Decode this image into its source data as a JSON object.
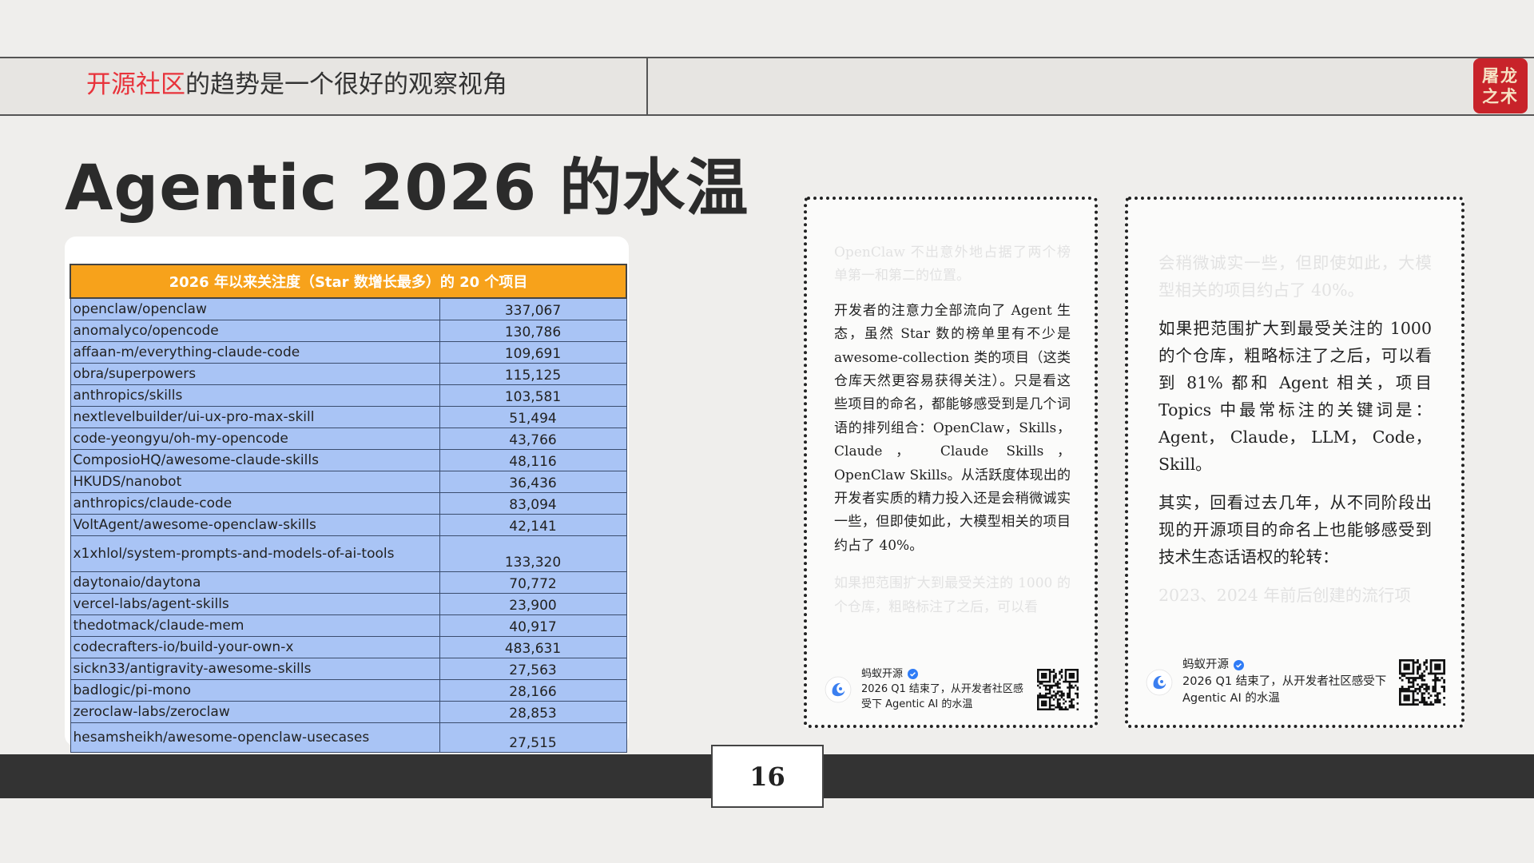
{
  "header": {
    "highlight": "开源社区",
    "text": "的趋势是一个很好的观察视角",
    "logo": "屠龙之术"
  },
  "title": "Agentic 2026 的水温",
  "table": {
    "title": "2026 年以来关注度（Star 数增长最多）的 20 个项目",
    "rows": [
      [
        "openclaw/openclaw",
        "337,067"
      ],
      [
        "anomalyco/opencode",
        "130,786"
      ],
      [
        "affaan-m/everything-claude-code",
        "109,691"
      ],
      [
        "obra/superpowers",
        "115,125"
      ],
      [
        "anthropics/skills",
        "103,581"
      ],
      [
        "nextlevelbuilder/ui-ux-pro-max-skill",
        "51,494"
      ],
      [
        "code-yeongyu/oh-my-opencode",
        "43,766"
      ],
      [
        "ComposioHQ/awesome-claude-skills",
        "48,116"
      ],
      [
        "HKUDS/nanobot",
        "36,436"
      ],
      [
        "anthropics/claude-code",
        "83,094"
      ],
      [
        "VoltAgent/awesome-openclaw-skills",
        "42,141"
      ],
      [
        "x1xhlol/system-prompts-and-models-of-ai-tools",
        "133,320"
      ],
      [
        "daytonaio/daytona",
        "70,772"
      ],
      [
        "vercel-labs/agent-skills",
        "23,900"
      ],
      [
        "thedotmack/claude-mem",
        "40,917"
      ],
      [
        "codecrafters-io/build-your-own-x",
        "483,631"
      ],
      [
        "sickn33/antigravity-awesome-skills",
        "27,563"
      ],
      [
        "badlogic/pi-mono",
        "28,166"
      ],
      [
        "zeroclaw-labs/zeroclaw",
        "28,853"
      ],
      [
        "hesamsheikh/awesome-openclaw-usecases",
        "27,515"
      ]
    ]
  },
  "cards": [
    {
      "faded_top": "OpenClaw 不出意外地占据了两个榜单第一和第二的位置。",
      "paragraphs": [
        "开发者的注意力全部流向了 Agent 生态，虽然 Star 数的榜单里有不少是 awesome-collection 类的项目（这类仓库天然更容易获得关注）。只是看这些项目的命名，都能够感受到是几个词语的排列组合：OpenClaw，Skills， Claude， Claude Skills， OpenClaw Skills。从活跃度体现出的开发者实质的精力投入还是会稍微诚实一些，但即使如此，大模型相关的项目约占了 40%。"
      ],
      "faded_bottom": "如果把范围扩大到最受关注的 1000 的个仓库，粗略标注了之后，可以看",
      "footer": {
        "author": "蚂蚁开源",
        "text": "2026 Q1 结束了，从开发者社区感受下 Agentic AI 的水温"
      }
    },
    {
      "faded_top": "会稍微诚实一些，但即使如此，大模型相关的项目约占了 40%。",
      "paragraphs": [
        "如果把范围扩大到最受关注的 1000 的个仓库，粗略标注了之后，可以看到 81% 都和 Agent 相关，项目 Topics 中最常标注的关键词是：Agent， Claude， LLM， Code， Skill。",
        "其实，回看过去几年，从不同阶段出现的开源项目的命名上也能够感受到技术生态话语权的轮转："
      ],
      "faded_bottom": "2023、2024 年前后创建的流行项",
      "footer": {
        "author": "蚂蚁开源",
        "text": "2026 Q1 结束了，从开发者社区感受下 Agentic AI 的水温"
      }
    }
  ],
  "page_number": "16"
}
